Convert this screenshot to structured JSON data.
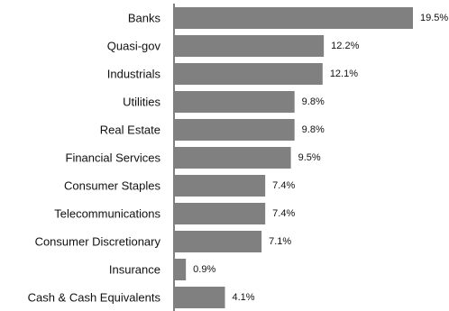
{
  "chart_data": {
    "type": "bar",
    "orientation": "horizontal",
    "categories": [
      "Banks",
      "Quasi-gov",
      "Industrials",
      "Utilities",
      "Real Estate",
      "Financial Services",
      "Consumer Staples",
      "Telecommunications",
      "Consumer Discretionary",
      "Insurance",
      "Cash & Cash Equivalents"
    ],
    "values": [
      19.5,
      12.2,
      12.1,
      9.8,
      9.8,
      9.5,
      7.4,
      7.4,
      7.1,
      0.9,
      4.1
    ],
    "value_labels": [
      "19.5%",
      "12.2%",
      "12.1%",
      "9.8%",
      "9.8%",
      "9.5%",
      "7.4%",
      "7.4%",
      "7.1%",
      "0.9%",
      "4.1%"
    ],
    "title": "",
    "xlabel": "",
    "ylabel": "",
    "xlim": [
      0,
      19.5
    ],
    "grid": false,
    "legend": "none",
    "bar_color": "#808080",
    "axis_color": "#808080"
  }
}
